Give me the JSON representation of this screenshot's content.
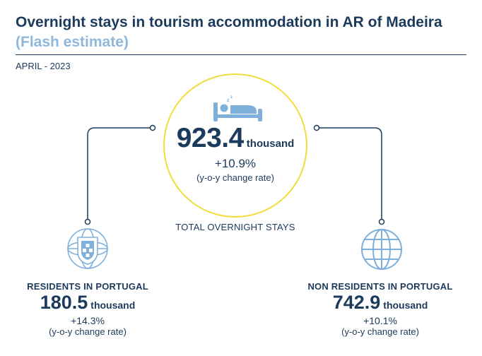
{
  "header": {
    "title": "Overnight stays in tourism accommodation in AR of Madeira",
    "subtitle": "(Flash estimate)",
    "period": "APRIL - 2023"
  },
  "total": {
    "value": "923.4",
    "unit": "thousand",
    "change": "+10.9%",
    "note": "(y-o-y change rate)",
    "label": "TOTAL OVERNIGHT STAYS",
    "icon": "bed-icon"
  },
  "residents": {
    "label": "RESIDENTS IN PORTUGAL",
    "value": "180.5",
    "unit": "thousand",
    "change": "+14.3%",
    "note": "(y-o-y change rate)",
    "icon": "portugal-coat-of-arms-icon"
  },
  "non_residents": {
    "label": "NON RESIDENTS IN PORTUGAL",
    "value": "742.9",
    "unit": "thousand",
    "change": "+10.1%",
    "note": "(y-o-y change rate)",
    "icon": "globe-icon"
  },
  "colors": {
    "navy": "#1b3a5c",
    "light_blue": "#8fb8dc",
    "circle_yellow": "#f2dc3c",
    "icon_blue": "#7fb0db"
  }
}
